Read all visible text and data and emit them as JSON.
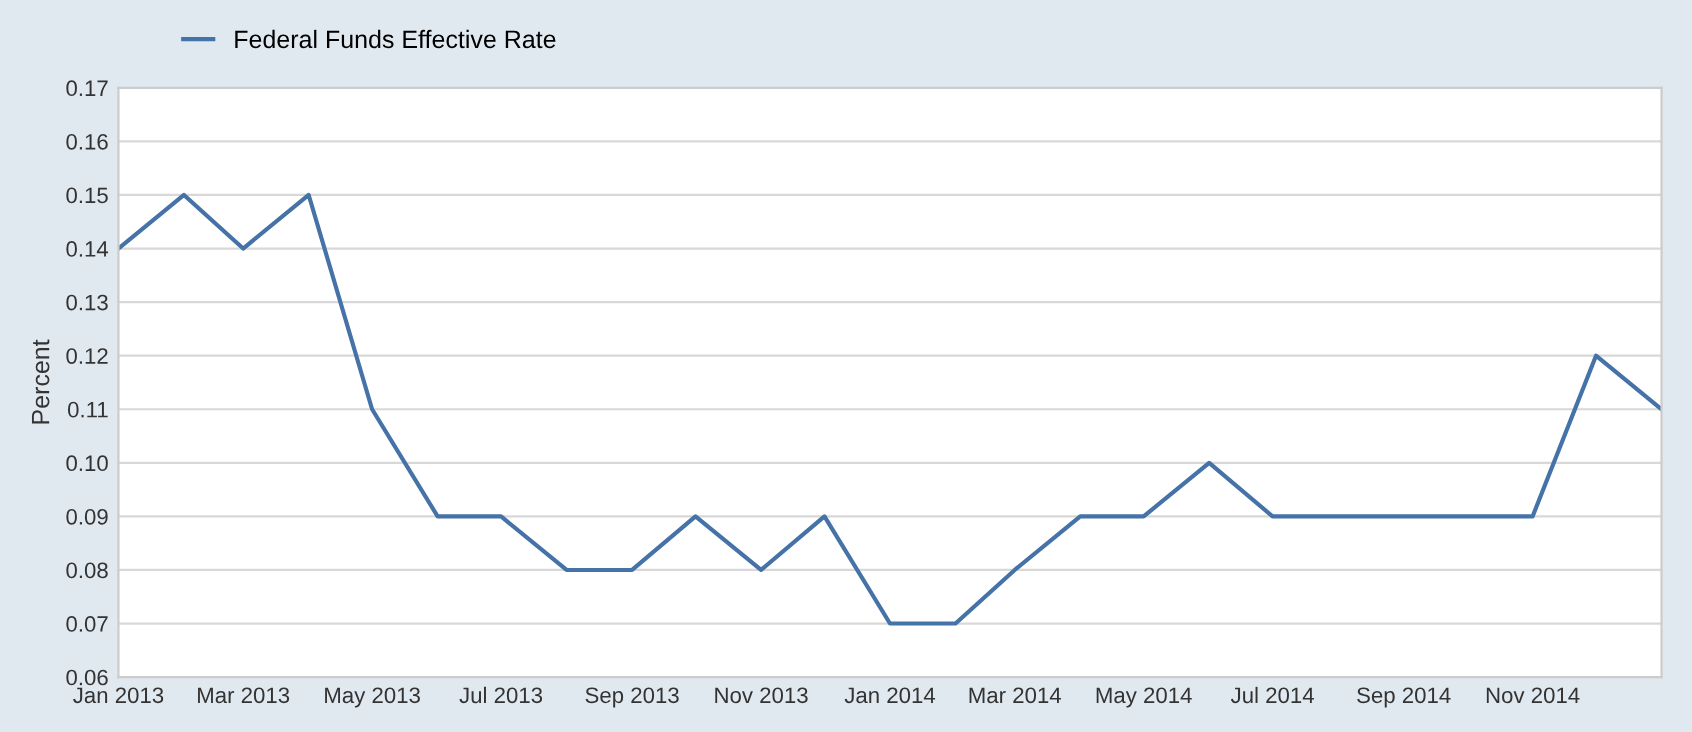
{
  "chart_data": {
    "type": "line",
    "ylabel": "Percent",
    "x": [
      "2013-01",
      "2013-02",
      "2013-03",
      "2013-04",
      "2013-05",
      "2013-06",
      "2013-07",
      "2013-08",
      "2013-09",
      "2013-10",
      "2013-11",
      "2013-12",
      "2014-01",
      "2014-02",
      "2014-03",
      "2014-04",
      "2014-05",
      "2014-06",
      "2014-07",
      "2014-08",
      "2014-09",
      "2014-10",
      "2014-11",
      "2014-12",
      "2015-01"
    ],
    "series": [
      {
        "name": "Federal Funds Effective Rate",
        "color": "#4572a7",
        "values": [
          0.14,
          0.15,
          0.14,
          0.15,
          0.11,
          0.09,
          0.09,
          0.08,
          0.08,
          0.09,
          0.08,
          0.09,
          0.07,
          0.07,
          0.08,
          0.09,
          0.09,
          0.1,
          0.09,
          0.09,
          0.09,
          0.09,
          0.09,
          0.12,
          0.11
        ]
      }
    ],
    "xlim": [
      "2013-01",
      "2015-01"
    ],
    "xticks": [
      {
        "value": "2013-01",
        "label": "Jan 2013"
      },
      {
        "value": "2013-03",
        "label": "Mar 2013"
      },
      {
        "value": "2013-05",
        "label": "May 2013"
      },
      {
        "value": "2013-07",
        "label": "Jul 2013"
      },
      {
        "value": "2013-09",
        "label": "Sep 2013"
      },
      {
        "value": "2013-11",
        "label": "Nov 2013"
      },
      {
        "value": "2014-01",
        "label": "Jan 2014"
      },
      {
        "value": "2014-03",
        "label": "Mar 2014"
      },
      {
        "value": "2014-05",
        "label": "May 2014"
      },
      {
        "value": "2014-07",
        "label": "Jul 2014"
      },
      {
        "value": "2014-09",
        "label": "Sep 2014"
      },
      {
        "value": "2014-11",
        "label": "Nov 2014"
      }
    ],
    "ylim": [
      0.06,
      0.17
    ],
    "yticks": [
      {
        "value": 0.06,
        "label": "0.06"
      },
      {
        "value": 0.07,
        "label": "0.07"
      },
      {
        "value": 0.08,
        "label": "0.08"
      },
      {
        "value": 0.09,
        "label": "0.09"
      },
      {
        "value": 0.1,
        "label": "0.10"
      },
      {
        "value": 0.11,
        "label": "0.11"
      },
      {
        "value": 0.12,
        "label": "0.12"
      },
      {
        "value": 0.13,
        "label": "0.13"
      },
      {
        "value": 0.14,
        "label": "0.14"
      },
      {
        "value": 0.15,
        "label": "0.15"
      },
      {
        "value": 0.16,
        "label": "0.16"
      },
      {
        "value": 0.17,
        "label": "0.17"
      }
    ],
    "grid": "y",
    "legend": "top left",
    "marker": "none",
    "line_style": "solid"
  }
}
